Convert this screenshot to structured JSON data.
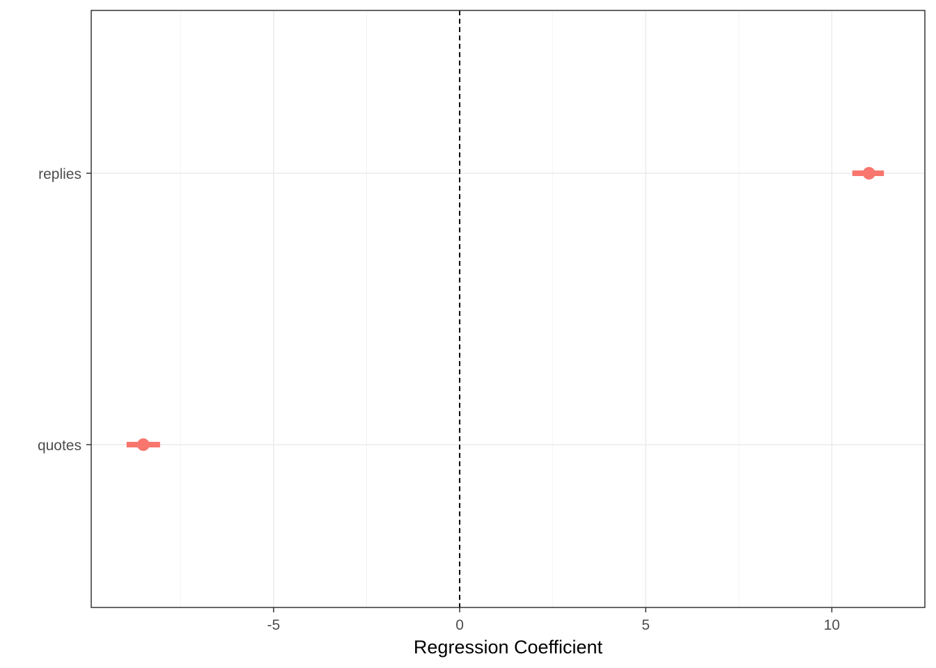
{
  "chart_data": {
    "type": "scatter",
    "subtype": "coefficient-plot",
    "title": "",
    "xlabel": "Regression Coefficient",
    "ylabel": "",
    "xlim": [
      -9.9,
      12.5
    ],
    "x_ticks": [
      -5,
      0,
      5,
      10
    ],
    "x_tick_labels": [
      "-5",
      "0",
      "5",
      "10"
    ],
    "x_minor_ticks": [
      -7.5,
      -2.5,
      2.5,
      7.5
    ],
    "categories": [
      "replies",
      "quotes"
    ],
    "points": [
      {
        "label": "replies",
        "estimate": 11.0,
        "ci_low": 10.55,
        "ci_high": 11.4
      },
      {
        "label": "quotes",
        "estimate": -8.5,
        "ci_low": -8.95,
        "ci_high": -8.05
      }
    ],
    "reference_line": {
      "x": 0,
      "style": "dashed"
    },
    "grid": true,
    "legend": "none",
    "point_color": "#F8766D",
    "reference_line_color": "#000000"
  }
}
